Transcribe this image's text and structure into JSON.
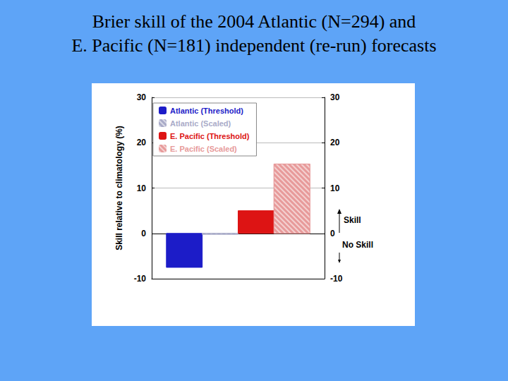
{
  "chart_data": {
    "type": "bar",
    "title": "Brier skill of the 2004 Atlantic (N=294) and\nE. Pacific (N=181) independent (re-run) forecasts",
    "y_label": "Skill relative to climatology (%)",
    "categories": [
      null
    ],
    "series": [
      {
        "name": "Atlantic (Threshold)",
        "color": "#1c1cc8",
        "values": [
          -7.5
        ]
      },
      {
        "name": "Atlantic (Scaled)",
        "color": "#a9abc8",
        "values": [
          -0.2
        ]
      },
      {
        "name": "E. Pacific (Threshold)",
        "color": "#dd1414",
        "values": [
          5
        ]
      },
      {
        "name": "E. Pacific (Scaled)",
        "color": "#e79a9a",
        "values": [
          15.3
        ]
      }
    ],
    "ylim": [
      -10,
      30
    ],
    "yticks": [
      -10,
      0,
      10,
      20,
      30
    ],
    "y2lim": [
      -10,
      30
    ],
    "y2ticks": [
      -10,
      0,
      10,
      20,
      30
    ],
    "annotations": [
      "Skill",
      "No Skill"
    ],
    "legend": "upper left",
    "grid": true,
    "tick_labels": "y"
  }
}
